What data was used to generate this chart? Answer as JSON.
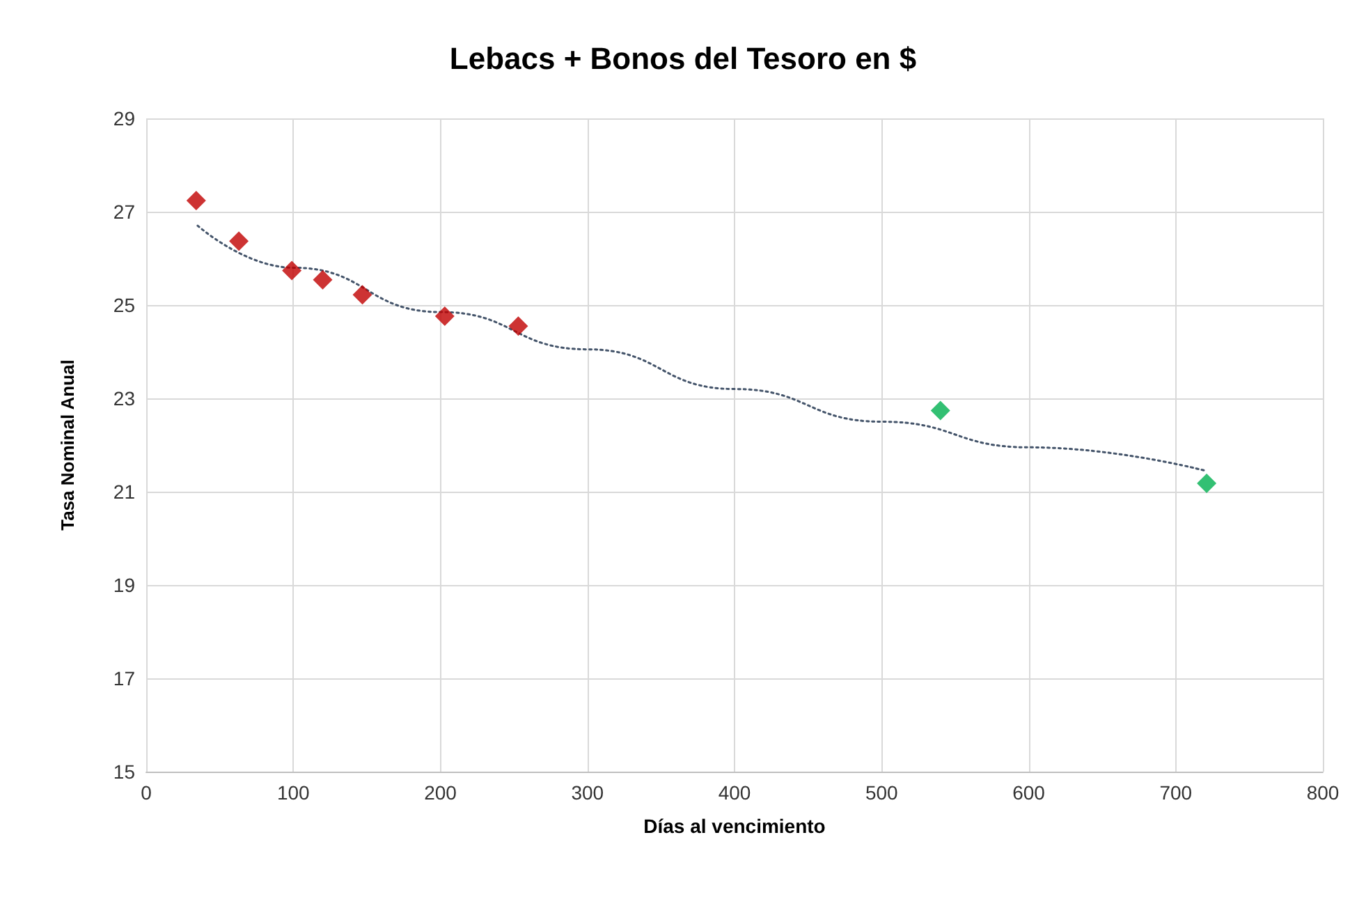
{
  "chart_data": {
    "type": "scatter",
    "title": "Lebacs + Bonos del Tesoro en $",
    "xlabel": "Días al vencimiento",
    "ylabel": "Tasa Nominal Anual",
    "xlim": [
      0,
      800
    ],
    "xticks": [
      0,
      100,
      200,
      300,
      400,
      500,
      600,
      700,
      800
    ],
    "ylim": [
      15,
      29
    ],
    "yticks": [
      15,
      17,
      19,
      21,
      23,
      25,
      27,
      29
    ],
    "grid": true,
    "marker": "diamond",
    "series": [
      {
        "color": "#c00000",
        "x": [
          34,
          63,
          99,
          120,
          147,
          203,
          253
        ],
        "values": [
          27.24,
          26.37,
          25.74,
          25.54,
          25.22,
          24.76,
          24.55
        ]
      },
      {
        "color": "#00b050",
        "x": [
          540,
          721
        ],
        "values": [
          22.74,
          21.18
        ]
      },
      {
        "type": "line",
        "color": "#44546a",
        "line_style": "dotted",
        "marker": "none",
        "x": [
          35,
          100,
          200,
          300,
          400,
          500,
          600,
          720
        ],
        "values": [
          26.7,
          25.8,
          24.85,
          24.05,
          23.2,
          22.5,
          21.95,
          21.45
        ]
      }
    ]
  }
}
